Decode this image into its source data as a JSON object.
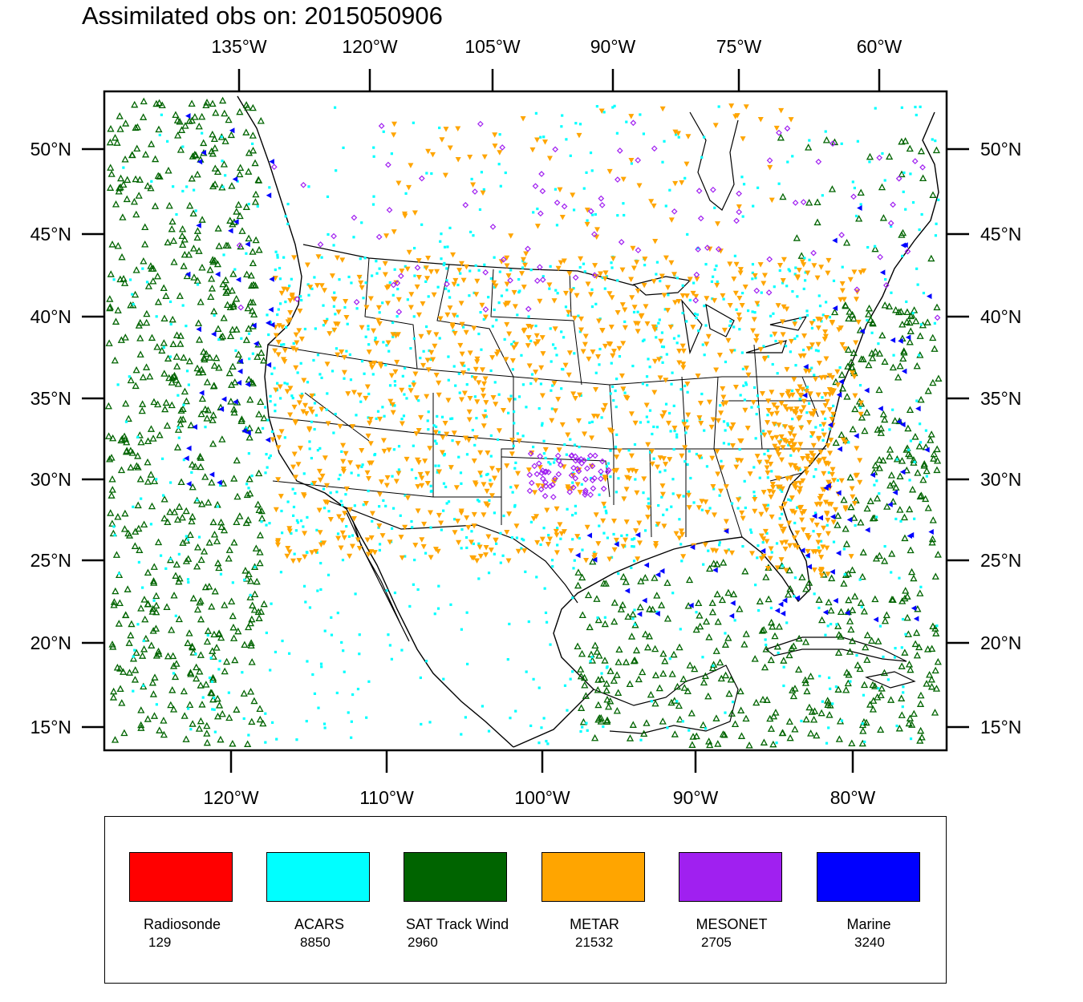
{
  "title": "Assimilated obs on: 2015050906",
  "top_lon_labels": [
    "135°W",
    "120°W",
    "105°W",
    "90°W",
    "75°W",
    "60°W"
  ],
  "bottom_lon_labels": [
    "120°W",
    "110°W",
    "100°W",
    "90°W",
    "80°W"
  ],
  "lat_labels": [
    "50°N",
    "45°N",
    "40°N",
    "35°N",
    "30°N",
    "25°N",
    "20°N",
    "15°N"
  ],
  "legend": [
    {
      "name": "Radiosonde",
      "count": "129",
      "color": "#ff0000"
    },
    {
      "name": "ACARS",
      "count": "8850",
      "color": "#00ffff"
    },
    {
      "name": "SAT Track Wind",
      "count": "2960",
      "color": "#006400"
    },
    {
      "name": "METAR",
      "count": "21532",
      "color": "#ffa500"
    },
    {
      "name": "MESONET",
      "count": "2705",
      "color": "#a020f0"
    },
    {
      "name": "Marine",
      "count": "3240",
      "color": "#0000ff"
    }
  ],
  "colors": {
    "land_outline": "#000000",
    "background": "#ffffff"
  }
}
